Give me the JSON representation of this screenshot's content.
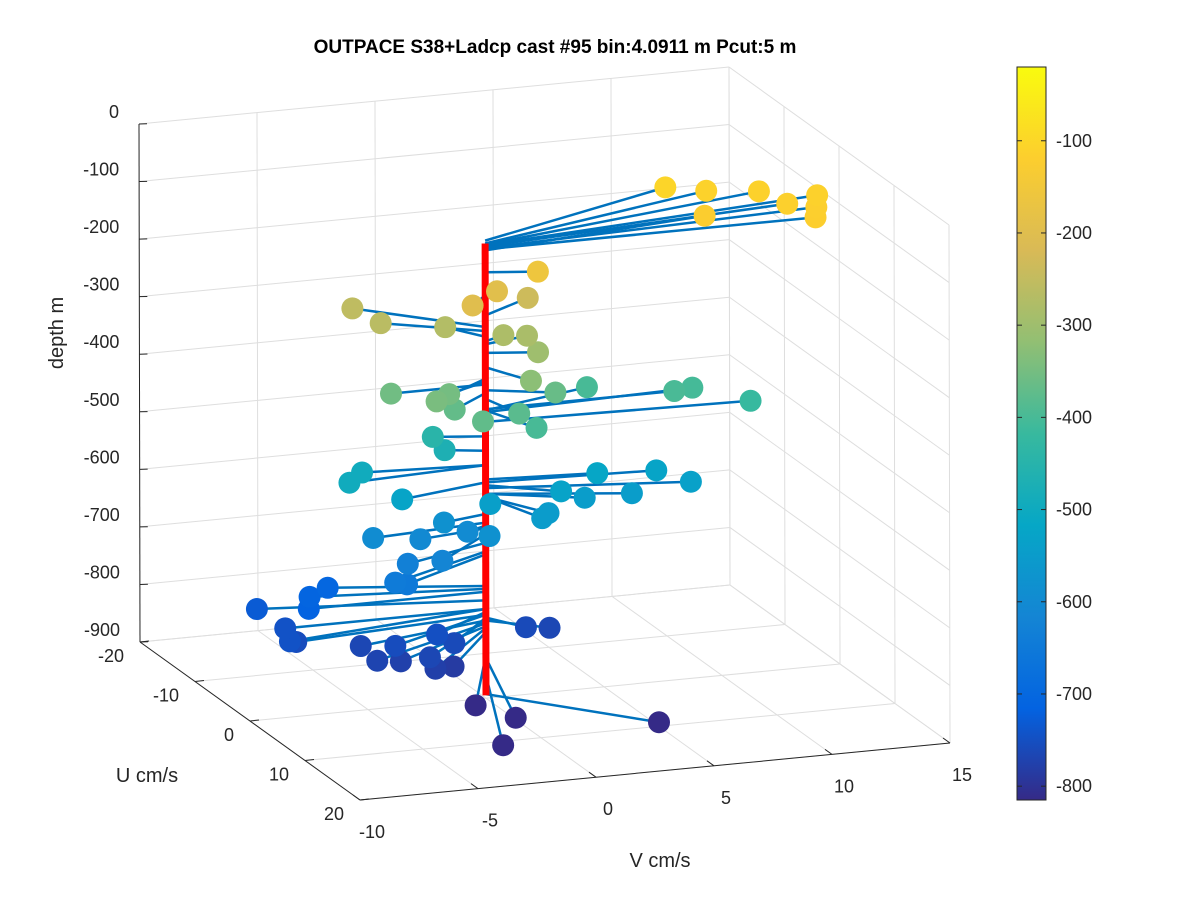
{
  "chart_data": {
    "type": "scatter",
    "title": "OUTPACE S38+Ladcp cast #95 bin:4.0911 m  Pcut:5 m",
    "xlabel": "V cm/s",
    "ylabel": "U cm/s",
    "zlabel": "depth m",
    "xlim": [
      -10,
      15
    ],
    "ylim": [
      -20,
      20
    ],
    "zlim": [
      -900,
      0
    ],
    "x_ticks": [
      -10,
      -5,
      0,
      5,
      10,
      15
    ],
    "y_ticks": [
      -20,
      -10,
      0,
      10,
      20
    ],
    "z_ticks": [
      0,
      -100,
      -200,
      -300,
      -400,
      -500,
      -600,
      -700,
      -800,
      -900
    ],
    "x_tick_labels": [
      "-10",
      "-5",
      "0",
      "5",
      "10",
      "15"
    ],
    "y_tick_labels": [
      "-20",
      "-10",
      "0",
      "10",
      "20"
    ],
    "z_tick_labels": [
      "0",
      "-100",
      "-200",
      "-300",
      "-400",
      "-500",
      "-600",
      "-700",
      "-800",
      "-900"
    ],
    "grid": true,
    "colormap": "parula",
    "colorbar": {
      "clim": [
        -815,
        -20
      ],
      "ticks": [
        -100,
        -200,
        -300,
        -400,
        -500,
        -600,
        -700,
        -800
      ],
      "tick_labels": [
        "-100",
        "-200",
        "-300",
        "-400",
        "-500",
        "-600",
        "-700",
        "-800"
      ]
    },
    "profile_line": {
      "color": "#ff0000",
      "x": 0,
      "y": 0,
      "z_range": [
        -110,
        -895
      ]
    },
    "vector_color": "#0072bd",
    "points": [
      {
        "v": 9.5,
        "u": -8,
        "depth": -105
      },
      {
        "v": 11,
        "u": -7,
        "depth": -110
      },
      {
        "v": 13,
        "u": -6,
        "depth": -112
      },
      {
        "v": 13.5,
        "u": -3,
        "depth": -115
      },
      {
        "v": 14.5,
        "u": -2,
        "depth": -118
      },
      {
        "v": 15,
        "u": -4,
        "depth": -113
      },
      {
        "v": 14,
        "u": 0,
        "depth": -120
      },
      {
        "v": 10,
        "u": -3,
        "depth": -122
      },
      {
        "v": 2,
        "u": 1,
        "depth": -160
      },
      {
        "v": -1,
        "u": 2,
        "depth": -200
      },
      {
        "v": 0.5,
        "u": 0,
        "depth": -195
      },
      {
        "v": 2.5,
        "u": -3,
        "depth": -235
      },
      {
        "v": -4,
        "u": -7,
        "depth": -255
      },
      {
        "v": -3.5,
        "u": -4,
        "depth": -262
      },
      {
        "v": -1,
        "u": -3,
        "depth": -272
      },
      {
        "v": 1,
        "u": -1,
        "depth": -280
      },
      {
        "v": 2,
        "u": -1,
        "depth": -285
      },
      {
        "v": 2,
        "u": 1,
        "depth": -300
      },
      {
        "v": 1,
        "u": 4,
        "depth": -325
      },
      {
        "v": -3,
        "u": 4,
        "depth": -345
      },
      {
        "v": -2,
        "u": 2,
        "depth": -350
      },
      {
        "v": -4,
        "u": 0,
        "depth": -355
      },
      {
        "v": -2,
        "u": 3,
        "depth": -370
      },
      {
        "v": -1.5,
        "u": 6,
        "depth": -372
      },
      {
        "v": 2.5,
        "u": 2,
        "depth": -365
      },
      {
        "v": 0.5,
        "u": 4,
        "depth": -380
      },
      {
        "v": 1,
        "u": 5,
        "depth": -400
      },
      {
        "v": 5,
        "u": -3,
        "depth": -400
      },
      {
        "v": 8,
        "u": 0,
        "depth": -398
      },
      {
        "v": 9,
        "u": -1,
        "depth": -403
      },
      {
        "v": 11,
        "u": 1,
        "depth": -420
      },
      {
        "v": -2,
        "u": -1,
        "depth": -445
      },
      {
        "v": -1.5,
        "u": -1,
        "depth": -470
      },
      {
        "v": -6,
        "u": 1,
        "depth": -495
      },
      {
        "v": -5,
        "u": -1,
        "depth": -495
      },
      {
        "v": -4,
        "u": 2,
        "depth": -525
      },
      {
        "v": -0.5,
        "u": 3,
        "depth": -540
      },
      {
        "v": 2.5,
        "u": 3,
        "depth": -530
      },
      {
        "v": 4.5,
        "u": 1,
        "depth": -520
      },
      {
        "v": 7,
        "u": 1,
        "depth": -525
      },
      {
        "v": 8,
        "u": 3,
        "depth": -535
      },
      {
        "v": 3.5,
        "u": 3,
        "depth": -545
      },
      {
        "v": 5.5,
        "u": 3,
        "depth": -545
      },
      {
        "v": 1,
        "u": 6,
        "depth": -550
      },
      {
        "v": 1.5,
        "u": 5,
        "depth": -550
      },
      {
        "v": -2,
        "u": 1,
        "depth": -580
      },
      {
        "v": -1,
        "u": 5,
        "depth": -580
      },
      {
        "v": -3,
        "u": 1,
        "depth": -605
      },
      {
        "v": -5,
        "u": 1,
        "depth": -595
      },
      {
        "v": -3,
        "u": 5,
        "depth": -615
      },
      {
        "v": -1,
        "u": 1,
        "depth": -600
      },
      {
        "v": -4,
        "u": 3,
        "depth": -630
      },
      {
        "v": -5,
        "u": 5,
        "depth": -645
      },
      {
        "v": -4.5,
        "u": 5,
        "depth": -650
      },
      {
        "v": -6,
        "u": -3,
        "depth": -705
      },
      {
        "v": -7,
        "u": -2,
        "depth": -710
      },
      {
        "v": -7.5,
        "u": 0,
        "depth": -715
      },
      {
        "v": -9,
        "u": -3,
        "depth": -730
      },
      {
        "v": -9,
        "u": 3,
        "depth": -745
      },
      {
        "v": -8.5,
        "u": 0,
        "depth": -745
      },
      {
        "v": -8.5,
        "u": 2,
        "depth": -755
      },
      {
        "v": -5,
        "u": 5,
        "depth": -755
      },
      {
        "v": -3,
        "u": 4,
        "depth": -750
      },
      {
        "v": -2.5,
        "u": 5,
        "depth": -760
      },
      {
        "v": -4,
        "u": 7,
        "depth": -765
      },
      {
        "v": -6,
        "u": 3,
        "depth": -765
      },
      {
        "v": -6,
        "u": 6,
        "depth": -770
      },
      {
        "v": -5,
        "u": 6,
        "depth": -775
      },
      {
        "v": -4,
        "u": 8,
        "depth": -778
      },
      {
        "v": -3,
        "u": 7,
        "depth": -785
      },
      {
        "v": 1,
        "u": 3,
        "depth": -760
      },
      {
        "v": 2,
        "u": 3,
        "depth": -765
      },
      {
        "v": -3,
        "u": 11,
        "depth": -825
      },
      {
        "v": -2,
        "u": 14,
        "depth": -830
      },
      {
        "v": -3,
        "u": 16,
        "depth": -860
      },
      {
        "v": 5,
        "u": 10,
        "depth": -893
      }
    ]
  }
}
